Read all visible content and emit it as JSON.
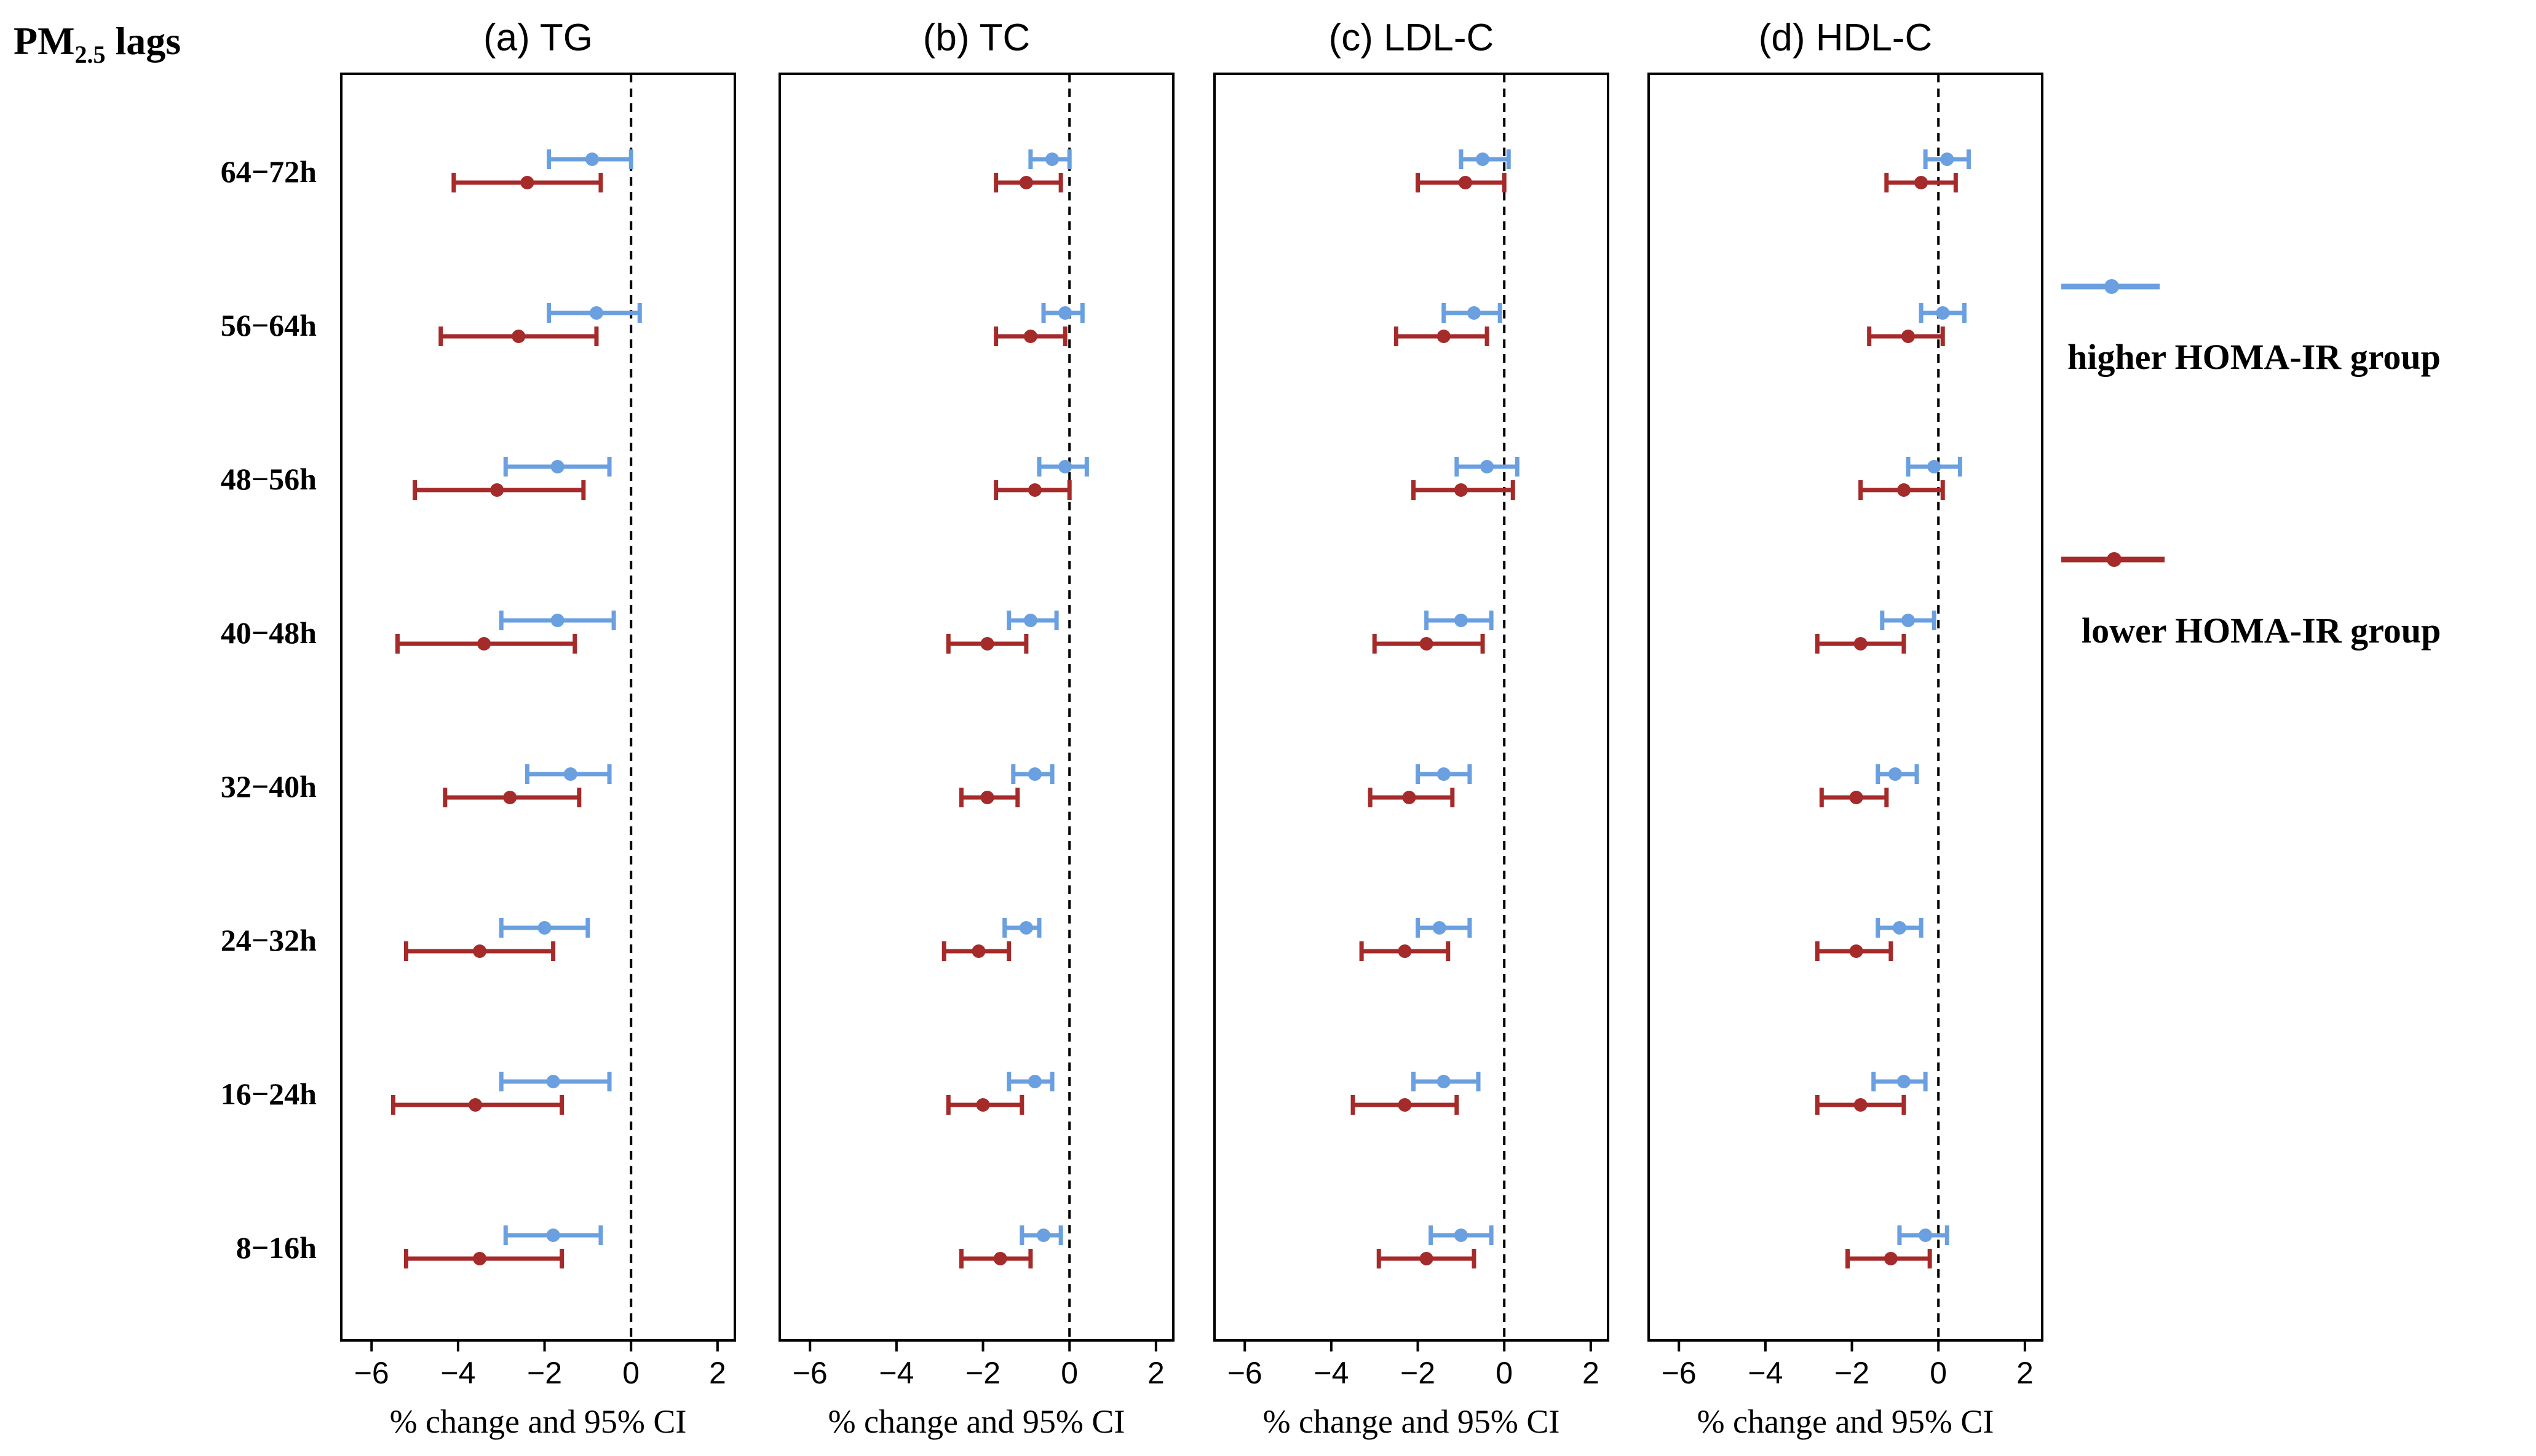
{
  "chart_data": {
    "type": "forest",
    "y_title_main": "PM",
    "y_title_sub": "2.5",
    "y_title_rest": " lags",
    "lags": [
      "64−72h",
      "56−64h",
      "48−56h",
      "40−48h",
      "32−40h",
      "24−32h",
      "16−24h",
      "8−16h"
    ],
    "xlim": [
      -6.7,
      2.4
    ],
    "xticks": [
      -6,
      -4,
      -2,
      0,
      2
    ],
    "xtick_labels": [
      "−6",
      "−4",
      "−2",
      "0",
      "2"
    ],
    "xlabel": "% change and 95% CI",
    "legend": [
      {
        "name": "higher HOMA-IR group",
        "color": "#6a9fe0"
      },
      {
        "name": "lower HOMA-IR group",
        "color": "#a52a2a"
      }
    ],
    "panels": [
      {
        "title": "(a) TG",
        "series": [
          {
            "name": "higher HOMA-IR group",
            "est": [
              -0.9,
              -0.8,
              -1.7,
              -1.7,
              -1.4,
              -2.0,
              -1.8,
              -1.8
            ],
            "lo": [
              -1.9,
              -1.9,
              -2.9,
              -3.0,
              -2.4,
              -3.0,
              -3.0,
              -2.9
            ],
            "hi": [
              0.0,
              0.2,
              -0.5,
              -0.4,
              -0.5,
              -1.0,
              -0.5,
              -0.7
            ]
          },
          {
            "name": "lower HOMA-IR group",
            "est": [
              -2.4,
              -2.6,
              -3.1,
              -3.4,
              -2.8,
              -3.5,
              -3.6,
              -3.5
            ],
            "lo": [
              -4.1,
              -4.4,
              -5.0,
              -5.4,
              -4.3,
              -5.2,
              -5.5,
              -5.2
            ],
            "hi": [
              -0.7,
              -0.8,
              -1.1,
              -1.3,
              -1.2,
              -1.8,
              -1.6,
              -1.6
            ]
          }
        ]
      },
      {
        "title": "(b) TC",
        "series": [
          {
            "name": "higher HOMA-IR group",
            "est": [
              -0.4,
              -0.1,
              -0.1,
              -0.9,
              -0.8,
              -1.0,
              -0.8,
              -0.6
            ],
            "lo": [
              -0.9,
              -0.6,
              -0.7,
              -1.4,
              -1.3,
              -1.5,
              -1.4,
              -1.1
            ],
            "hi": [
              0.0,
              0.3,
              0.4,
              -0.3,
              -0.4,
              -0.7,
              -0.4,
              -0.2
            ]
          },
          {
            "name": "lower HOMA-IR group",
            "est": [
              -1.0,
              -0.9,
              -0.8,
              -1.9,
              -1.9,
              -2.1,
              -2.0,
              -1.6
            ],
            "lo": [
              -1.7,
              -1.7,
              -1.7,
              -2.8,
              -2.5,
              -2.9,
              -2.8,
              -2.5
            ],
            "hi": [
              -0.2,
              -0.1,
              0.0,
              -1.0,
              -1.2,
              -1.4,
              -1.1,
              -0.9
            ]
          }
        ]
      },
      {
        "title": "(c) LDL-C",
        "series": [
          {
            "name": "higher HOMA-IR group",
            "est": [
              -0.5,
              -0.7,
              -0.4,
              -1.0,
              -1.4,
              -1.5,
              -1.4,
              -1.0
            ],
            "lo": [
              -1.0,
              -1.4,
              -1.1,
              -1.8,
              -2.0,
              -2.0,
              -2.1,
              -1.7
            ],
            "hi": [
              0.1,
              -0.1,
              0.3,
              -0.3,
              -0.8,
              -0.8,
              -0.6,
              -0.3
            ]
          },
          {
            "name": "lower HOMA-IR group",
            "est": [
              -0.9,
              -1.4,
              -1.0,
              -1.8,
              -2.2,
              -2.3,
              -2.3,
              -1.8
            ],
            "lo": [
              -2.0,
              -2.5,
              -2.1,
              -3.0,
              -3.1,
              -3.3,
              -3.5,
              -2.9
            ],
            "hi": [
              0.0,
              -0.4,
              0.2,
              -0.5,
              -1.2,
              -1.3,
              -1.1,
              -0.7
            ]
          }
        ]
      },
      {
        "title": "(d) HDL-C",
        "series": [
          {
            "name": "higher HOMA-IR group",
            "est": [
              0.2,
              0.1,
              -0.1,
              -0.7,
              -1.0,
              -0.9,
              -0.8,
              -0.3
            ],
            "lo": [
              -0.3,
              -0.4,
              -0.7,
              -1.3,
              -1.4,
              -1.4,
              -1.5,
              -0.9
            ],
            "hi": [
              0.7,
              0.6,
              0.5,
              -0.1,
              -0.5,
              -0.4,
              -0.3,
              0.2
            ]
          },
          {
            "name": "lower HOMA-IR group",
            "est": [
              -0.4,
              -0.7,
              -0.8,
              -1.8,
              -1.9,
              -1.9,
              -1.8,
              -1.1
            ],
            "lo": [
              -1.2,
              -1.6,
              -1.8,
              -2.8,
              -2.7,
              -2.8,
              -2.8,
              -2.1
            ],
            "hi": [
              0.4,
              0.1,
              0.1,
              -0.8,
              -1.2,
              -1.1,
              -0.8,
              -0.2
            ]
          }
        ]
      }
    ]
  }
}
